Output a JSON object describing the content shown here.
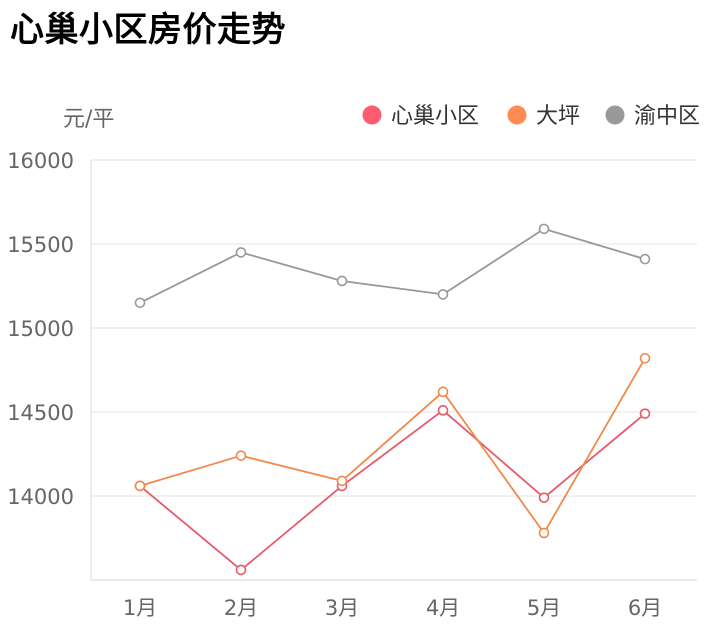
{
  "page": {
    "title": "心巢小区房价走势"
  },
  "chart_data": {
    "type": "line",
    "title": "",
    "xlabel": "",
    "ylabel": "元/平",
    "categories": [
      "1月",
      "2月",
      "3月",
      "4月",
      "5月",
      "6月"
    ],
    "y_ticks": [
      "14000",
      "14500",
      "15000",
      "15500",
      "16000"
    ],
    "ylim": [
      13500,
      16000
    ],
    "grid": true,
    "legend_position": "top-right",
    "series": [
      {
        "name": "心巢小区",
        "color": "#e8596b",
        "values": [
          14060,
          13560,
          14060,
          14510,
          13990,
          14490
        ]
      },
      {
        "name": "大坪",
        "color": "#f08a4b",
        "values": [
          14060,
          14240,
          14090,
          14620,
          13780,
          14820
        ]
      },
      {
        "name": "渝中区",
        "color": "#999999",
        "values": [
          15150,
          15450,
          15280,
          15200,
          15590,
          15410
        ]
      }
    ],
    "legend_marker_colors": [
      "#ff5b6e",
      "#ff8b52",
      "#999999"
    ]
  }
}
